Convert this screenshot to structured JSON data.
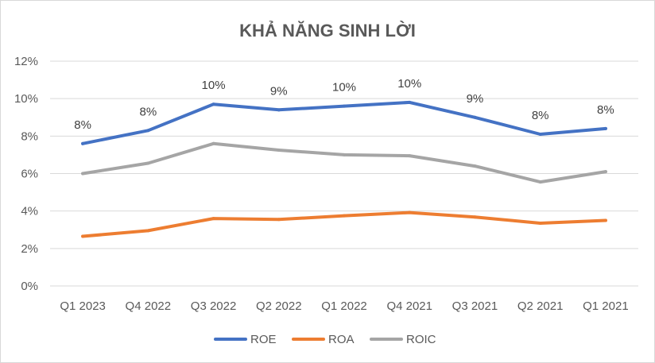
{
  "chart_data": {
    "type": "line",
    "title": "KHẢ NĂNG SINH LỜI",
    "categories": [
      "Q1 2023",
      "Q4 2022",
      "Q3 2022",
      "Q2 2022",
      "Q1 2022",
      "Q4 2021",
      "Q3 2021",
      "Q2 2021",
      "Q1 2021"
    ],
    "ylim": [
      0,
      12
    ],
    "yticks": [
      0,
      2,
      4,
      6,
      8,
      10,
      12
    ],
    "ytick_labels": [
      "0%",
      "2%",
      "4%",
      "6%",
      "8%",
      "10%",
      "12%"
    ],
    "grid": true,
    "legend_position": "bottom",
    "series": [
      {
        "name": "ROE",
        "color": "#4472C4",
        "values": [
          7.6,
          8.3,
          9.7,
          9.4,
          9.6,
          9.8,
          9.0,
          8.1,
          8.4
        ],
        "data_labels": [
          "8%",
          "8%",
          "10%",
          "9%",
          "10%",
          "10%",
          "9%",
          "8%",
          "8%"
        ]
      },
      {
        "name": "ROA",
        "color": "#ED7D31",
        "values": [
          2.65,
          2.95,
          3.6,
          3.55,
          3.75,
          3.92,
          3.68,
          3.35,
          3.5
        ]
      },
      {
        "name": "ROIC",
        "color": "#A5A5A5",
        "values": [
          6.0,
          6.55,
          7.6,
          7.25,
          7.0,
          6.95,
          6.4,
          5.55,
          6.1
        ]
      }
    ]
  }
}
